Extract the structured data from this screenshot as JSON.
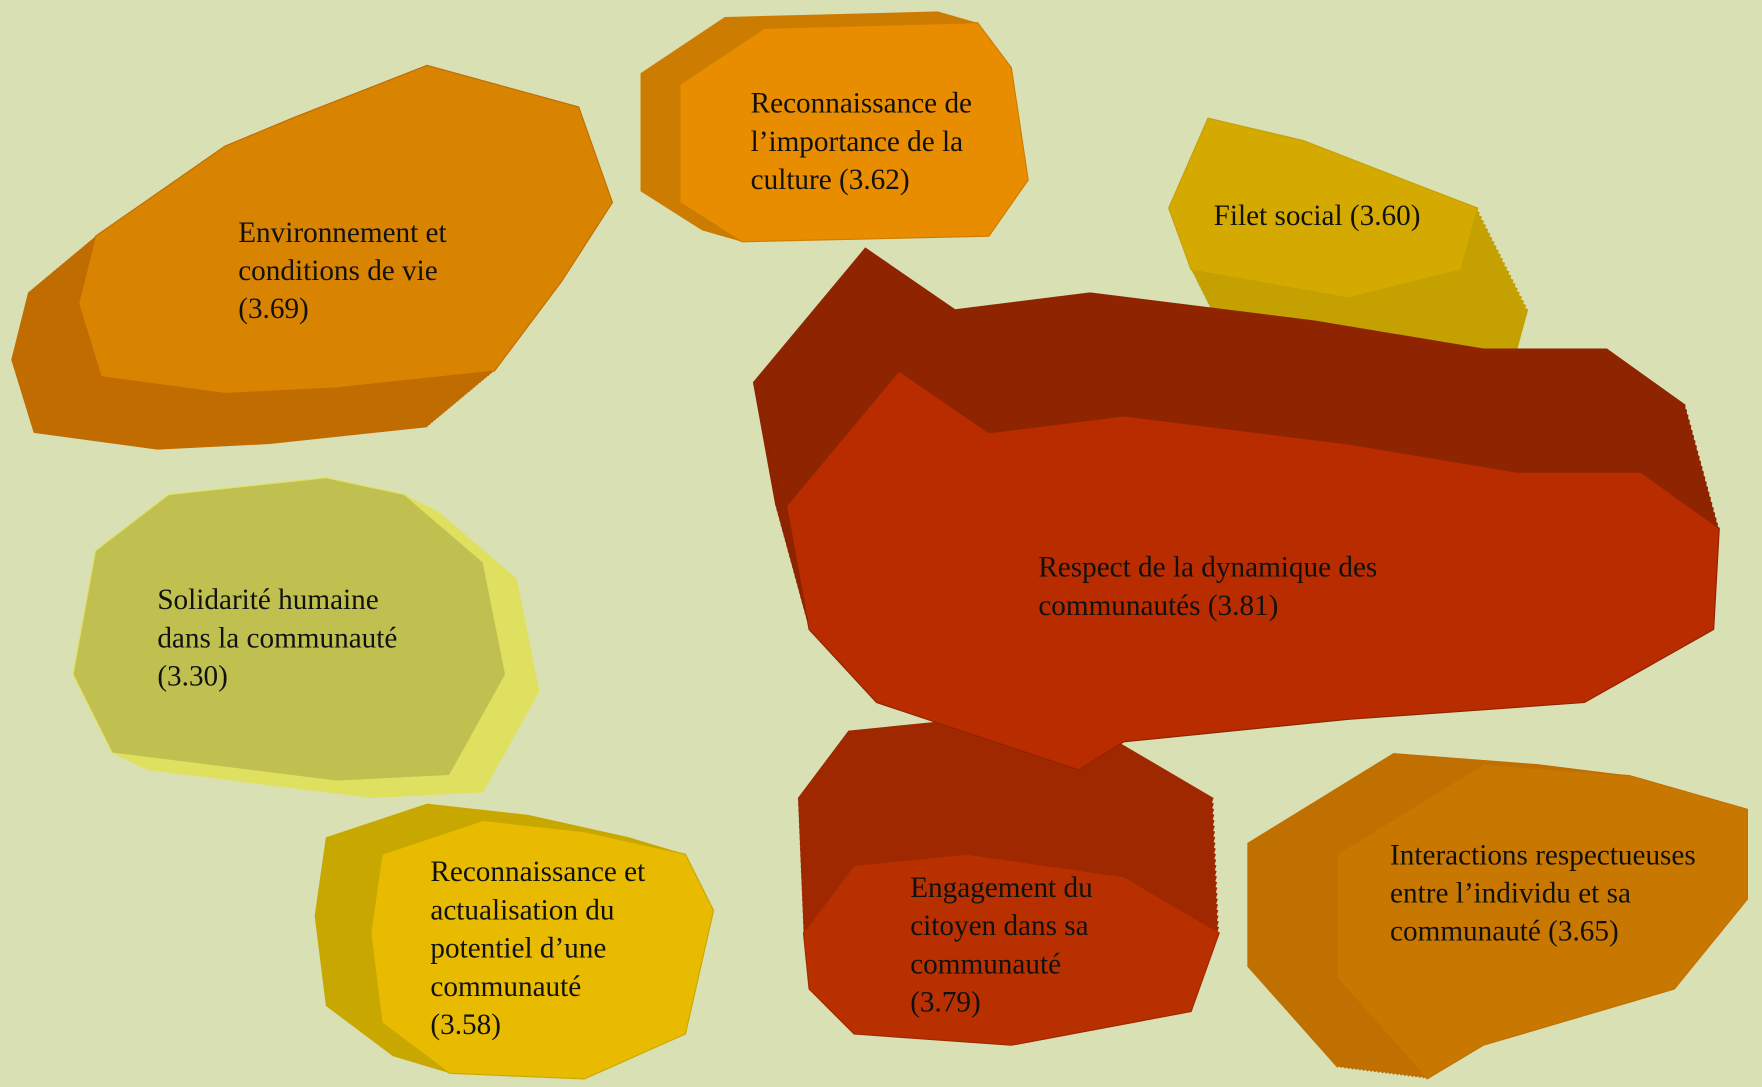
{
  "nodes": [
    {
      "lines": [
        "Environnement et",
        "conditions de vie",
        "(3.69)"
      ]
    },
    {
      "lines": [
        "Reconnaissance de",
        "l’importance de la",
        "culture (3.62)"
      ]
    },
    {
      "lines": [
        "Filet social (3.60)"
      ]
    },
    {
      "lines": [
        "Respect de la dynamique des",
        "communautés (3.81)"
      ]
    },
    {
      "lines": [
        "Solidarité humaine",
        "dans la communauté",
        "(3.30)"
      ]
    },
    {
      "lines": [
        "Reconnaissance et",
        "actualisation du",
        "potentiel d’une",
        "communauté",
        "(3.58)"
      ]
    },
    {
      "lines": [
        "Engagement du",
        "citoyen dans sa",
        "communauté",
        "(3.79)"
      ]
    },
    {
      "lines": [
        "Interactions respectueuses",
        "entre l’individu et sa",
        "communauté (3.65)"
      ]
    }
  ]
}
